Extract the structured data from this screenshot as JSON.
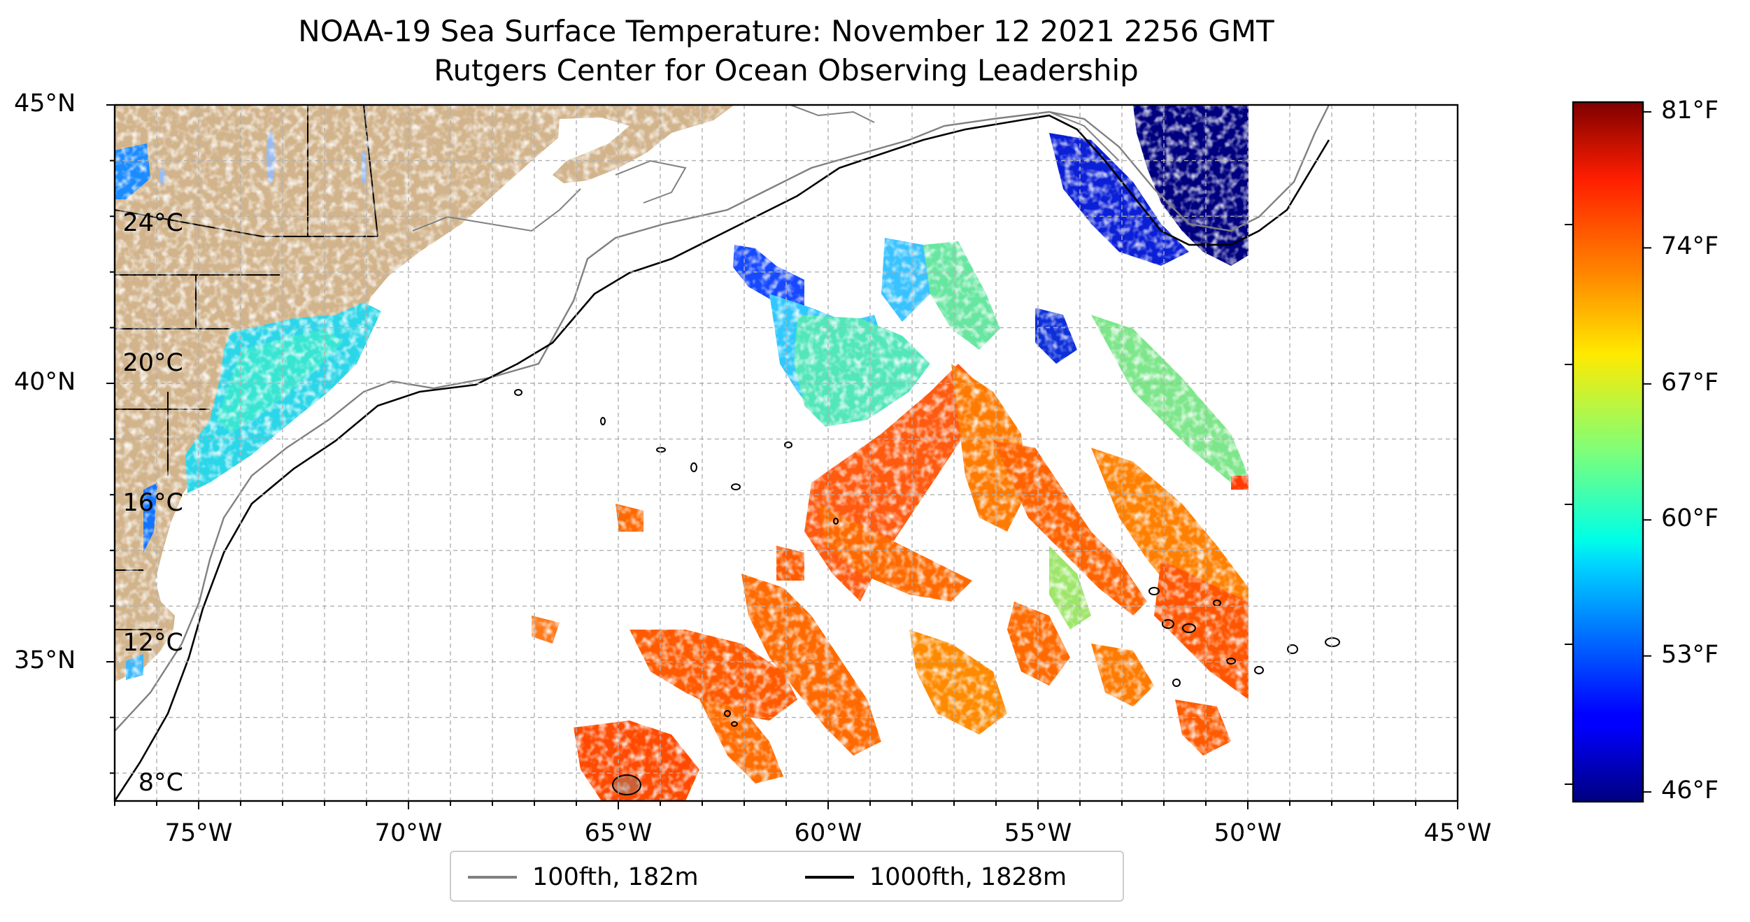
{
  "title": {
    "line1": "NOAA-19 Sea Surface Temperature: November 12 2021 2256 GMT",
    "line2": "Rutgers Center for Ocean Observing Leadership"
  },
  "map": {
    "projection": "plate-carree",
    "lon_range": [
      -77,
      -45
    ],
    "lat_range": [
      32.5,
      45
    ],
    "grid": true,
    "land_color": "#d2b48c",
    "ocean_color": "#ffffff",
    "lon_ticks": [
      {
        "value": -75,
        "label": "75°W"
      },
      {
        "value": -70,
        "label": "70°W"
      },
      {
        "value": -65,
        "label": "65°W"
      },
      {
        "value": -60,
        "label": "60°W"
      },
      {
        "value": -55,
        "label": "55°W"
      },
      {
        "value": -50,
        "label": "50°W"
      },
      {
        "value": -45,
        "label": "45°W"
      }
    ],
    "lat_ticks": [
      {
        "value": 45,
        "label": "45°N"
      },
      {
        "value": 40,
        "label": "40°N"
      },
      {
        "value": 35,
        "label": "35°N"
      }
    ]
  },
  "colorbar": {
    "colormap": "jet",
    "range_c": [
      7.5,
      27.5
    ],
    "celsius_ticks": [
      {
        "value": 8,
        "label": "8°C"
      },
      {
        "value": 12,
        "label": "12°C"
      },
      {
        "value": 16,
        "label": "16°C"
      },
      {
        "value": 20,
        "label": "20°C"
      },
      {
        "value": 24,
        "label": "24°C"
      }
    ],
    "fahrenheit_ticks": [
      {
        "value": 46,
        "label": "46°F"
      },
      {
        "value": 53,
        "label": "53°F"
      },
      {
        "value": 60,
        "label": "60°F"
      },
      {
        "value": 67,
        "label": "67°F"
      },
      {
        "value": 74,
        "label": "74°F"
      },
      {
        "value": 81,
        "label": "81°F"
      }
    ]
  },
  "legend": {
    "items": [
      {
        "label": "100fth, 182m",
        "color": "#808080"
      },
      {
        "label": "1000fth, 1828m",
        "color": "#000000"
      }
    ]
  }
}
